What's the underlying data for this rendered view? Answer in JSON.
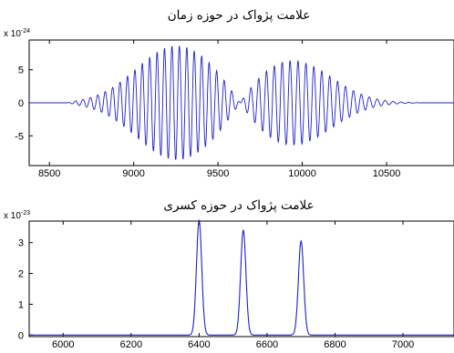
{
  "chart_data": [
    {
      "type": "line",
      "title": "علامت پژواک در حوزه زمان",
      "xlabel": "",
      "ylabel": "",
      "y_exponent_base": "x 10",
      "y_exponent_power": "-24",
      "xlim": [
        8380,
        10900
      ],
      "ylim": [
        -9.5,
        9.5
      ],
      "xticks": [
        "8500",
        "9000",
        "9500",
        "10000",
        "10500"
      ],
      "yticks": [
        "5",
        "0",
        "-5"
      ],
      "grid": false,
      "color": "#2020c8",
      "signal": {
        "description_free": true,
        "t_start": 8600,
        "t_end": 10730,
        "components": [
          {
            "center": 9250,
            "width": 330,
            "amplitude": 8.6,
            "period": 44
          },
          {
            "center": 9950,
            "width": 320,
            "amplitude": 6.3,
            "period": 47
          }
        ]
      }
    },
    {
      "type": "line",
      "title": "علامت پژواک در حوزه کسری",
      "xlabel": "",
      "ylabel": "",
      "y_exponent_base": "x 10",
      "y_exponent_power": "-23",
      "xlim": [
        5900,
        7150
      ],
      "ylim": [
        -0.05,
        3.7
      ],
      "xticks": [
        "6000",
        "6200",
        "6400",
        "6600",
        "6800",
        "7000"
      ],
      "yticks": [
        "3",
        "2",
        "1",
        "0"
      ],
      "grid": false,
      "color": "#2020c8",
      "peaks": [
        {
          "x": 6400,
          "y": 3.72
        },
        {
          "x": 6530,
          "y": 3.4
        },
        {
          "x": 6700,
          "y": 3.05
        }
      ],
      "peak_width": 11
    }
  ]
}
